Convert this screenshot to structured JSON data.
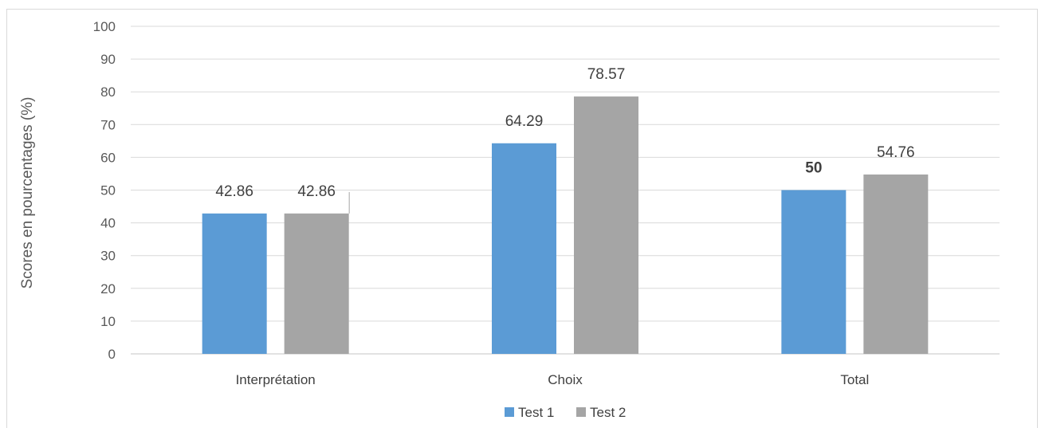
{
  "chart_data": {
    "type": "bar",
    "title": "",
    "xlabel": "",
    "ylabel": "Scores en pourcentages (%)",
    "ylim": [
      0,
      100
    ],
    "ytick_step": 10,
    "yticks": [
      "0",
      "10",
      "20",
      "30",
      "40",
      "50",
      "60",
      "70",
      "80",
      "90",
      "100"
    ],
    "grid": true,
    "legend_position": "bottom",
    "categories": [
      "Interprétation",
      "Choix",
      "Total"
    ],
    "series": [
      {
        "name": "Test 1",
        "color": "#5b9bd5",
        "values": [
          42.86,
          64.29,
          50
        ],
        "labels": [
          "42.86",
          "64.29",
          "50"
        ],
        "bold_labels": [
          false,
          false,
          true
        ]
      },
      {
        "name": "Test 2",
        "color": "#a5a5a5",
        "values": [
          42.86,
          78.57,
          54.76
        ],
        "labels": [
          "42.86",
          "78.57",
          "54.76"
        ],
        "bold_labels": [
          false,
          false,
          false
        ]
      }
    ]
  }
}
